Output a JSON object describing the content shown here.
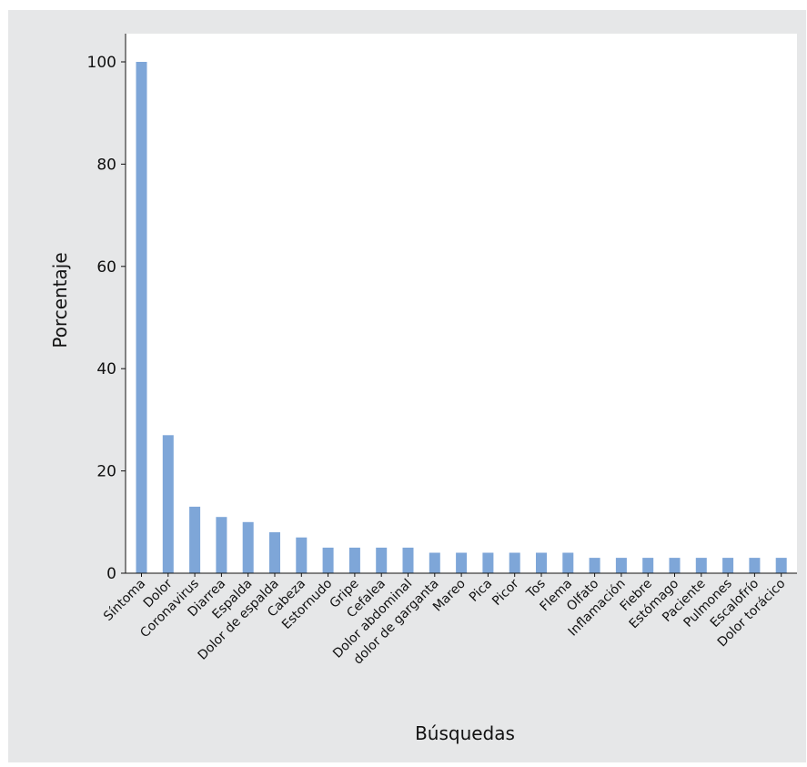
{
  "chart_data": {
    "type": "bar",
    "xlabel": "Búsquedas",
    "ylabel": "Porcentaje",
    "ylim": [
      0,
      100
    ],
    "yticks": [
      0,
      20,
      40,
      60,
      80,
      100
    ],
    "grid": false,
    "bar_color": "#7ea6d8",
    "categories": [
      "Síntoma",
      "Dolor",
      "Coronavirus",
      "Diarrea",
      "Espalda",
      "Dolor de espalda",
      "Cabeza",
      "Estornudo",
      "Gripe",
      "Cefalea",
      "Dolor abdominal",
      "dolor de garganta",
      "Mareo",
      "Pica",
      "Picor",
      "Tos",
      "Flema",
      "Olfato",
      "Inflamación",
      "Fiebre",
      "Estómago",
      "Paciente",
      "Pulmones",
      "Escalofrío",
      "Dolor torácico"
    ],
    "values": [
      100,
      27,
      13,
      11,
      10,
      8,
      7,
      5,
      5,
      5,
      5,
      4,
      4,
      4,
      4,
      4,
      4,
      3,
      3,
      3,
      3,
      3,
      3,
      3,
      3
    ]
  },
  "colors": {
    "panel_background": "#e6e7e8",
    "plot_background": "#ffffff",
    "bar": "#7ea6d8",
    "axis": "#111111"
  }
}
